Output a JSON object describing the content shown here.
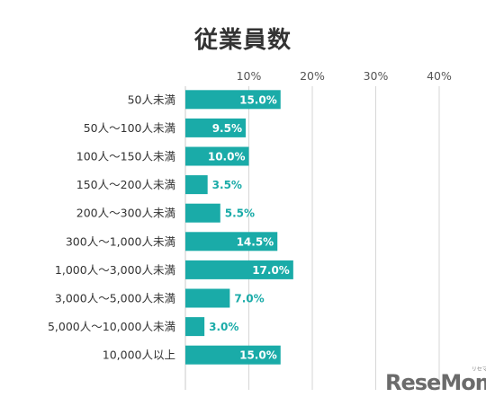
{
  "chart_data": {
    "type": "bar",
    "orientation": "horizontal",
    "title": "従業員数",
    "categories": [
      "50人未満",
      "50人～100人未満",
      "100人～150人未満",
      "150人～200人未満",
      "200人～300人未満",
      "300人～1,000人未満",
      "1,000人～3,000人未満",
      "3,000人～5,000人未満",
      "5,000人～10,000人未満",
      "10,000人以上"
    ],
    "values": [
      15.0,
      9.5,
      10.0,
      3.5,
      5.5,
      14.5,
      17.0,
      7.0,
      3.0,
      15.0
    ],
    "value_labels": [
      "15.0%",
      "9.5%",
      "10.0%",
      "3.5%",
      "5.5%",
      "14.5%",
      "17.0%",
      "7.0%",
      "3.0%",
      "15.0%"
    ],
    "x_ticks": [
      10,
      20,
      30,
      40
    ],
    "x_tick_labels": [
      "10%",
      "20%",
      "30%",
      "40%"
    ],
    "xlim": [
      0,
      40
    ],
    "bar_color": "#1aaba8",
    "grid": true
  },
  "logo": {
    "text": "ReseMom",
    "small": "リセマム"
  }
}
